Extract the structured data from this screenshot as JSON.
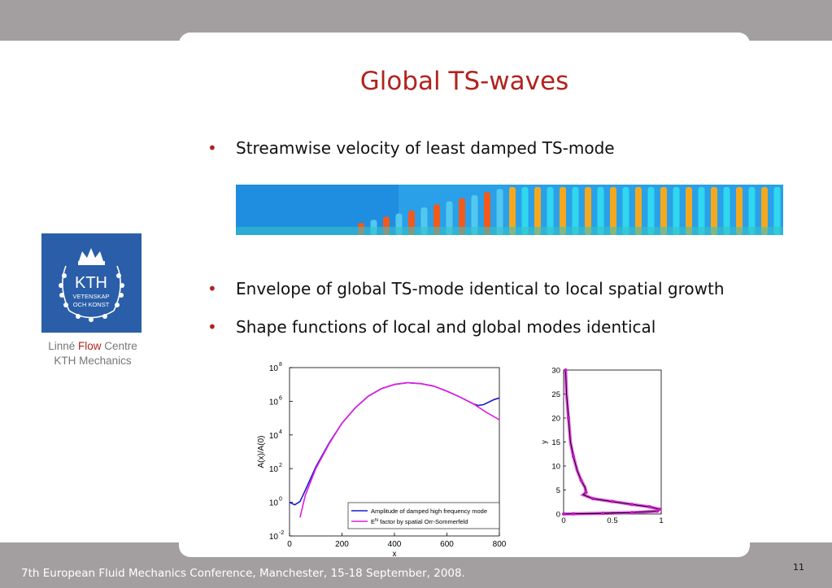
{
  "slide": {
    "title": "Global TS-waves",
    "bullets": [
      "Streamwise velocity of least damped TS-mode",
      "Envelope of global TS-mode identical to local spatial growth",
      "Shape functions of local and global modes identical"
    ],
    "logo": {
      "text1": "KTH",
      "text2": "VETENSKAP",
      "text3": "OCH KONST",
      "caption_pre": "Linné",
      "caption_flow": "Flow",
      "caption_post": "Centre",
      "caption_line2": "KTH Mechanics"
    },
    "footer": "7th European Fluid Mechanics Conference, Manchester, 15-18 September, 2008.",
    "page_number": "11",
    "colors": {
      "title": "#b2231e",
      "logo_bg": "#2a5ea8",
      "band": "#a39fa1"
    }
  },
  "chart_data": [
    {
      "type": "line",
      "xlabel": "x",
      "ylabel": "A(x)/A(0)",
      "xlim": [
        0,
        800
      ],
      "ylim_log10": [
        -2,
        8
      ],
      "yscale": "log",
      "xticks": [
        "0",
        "200",
        "400",
        "600",
        "800"
      ],
      "yticks": [
        "10",
        "10",
        "10",
        "10",
        "10",
        "10"
      ],
      "ytick_exponents": [
        "-2",
        "0",
        "2",
        "4",
        "6",
        "8"
      ],
      "legend_position": "bottom-right",
      "series": [
        {
          "name": "Amplitude of damped high frequency mode",
          "color": "#1c1cc8",
          "x": [
            0,
            20,
            40,
            60,
            100,
            150,
            200,
            250,
            300,
            350,
            400,
            450,
            500,
            550,
            600,
            650,
            700,
            720,
            740,
            760,
            780,
            800
          ],
          "log10y": [
            0,
            -0.15,
            0.05,
            0.7,
            2.1,
            3.5,
            4.7,
            5.6,
            6.3,
            6.75,
            7.0,
            7.1,
            7.05,
            6.9,
            6.6,
            6.25,
            5.85,
            5.75,
            5.8,
            5.95,
            6.1,
            6.2
          ]
        },
        {
          "name": "factor by spatial Orr-Sommerfeld",
          "legend_prefix": "E",
          "legend_superscript": "N",
          "color": "#e21ce2",
          "x": [
            40,
            60,
            100,
            150,
            200,
            250,
            300,
            350,
            400,
            450,
            500,
            550,
            600,
            650,
            700,
            750,
            800
          ],
          "log10y": [
            -0.9,
            0.4,
            2.0,
            3.45,
            4.7,
            5.6,
            6.3,
            6.75,
            7.0,
            7.1,
            7.05,
            6.9,
            6.6,
            6.25,
            5.85,
            5.35,
            4.9
          ]
        }
      ]
    },
    {
      "type": "line",
      "ylabel": "y",
      "xlim": [
        0,
        1
      ],
      "ylim": [
        0,
        30
      ],
      "xticks": [
        "0",
        "0.5",
        "1"
      ],
      "yticks": [
        "0",
        "5",
        "10",
        "15",
        "20",
        "25",
        "30"
      ],
      "series": [
        {
          "color": "#000000",
          "x": [
            0.02,
            0.03,
            0.05,
            0.07,
            0.1,
            0.14,
            0.18,
            0.22,
            0.23,
            0.2,
            0.3,
            0.5,
            0.7,
            0.88,
            0.98,
            0.96,
            0.7,
            0.4,
            0.1,
            0.0
          ],
          "y": [
            30,
            25,
            20,
            15,
            12,
            9,
            7,
            5.5,
            4.5,
            4,
            3.2,
            2.6,
            2.0,
            1.5,
            1.0,
            0.6,
            0.3,
            0.15,
            0.05,
            0
          ]
        }
      ]
    }
  ]
}
